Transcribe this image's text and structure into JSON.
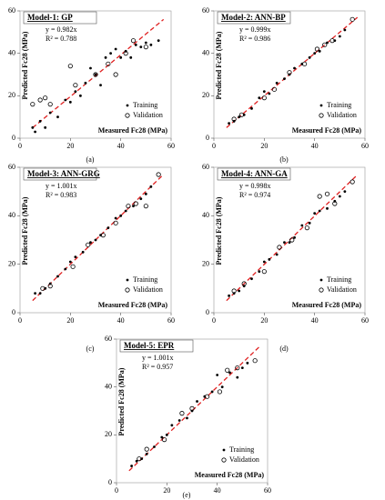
{
  "chart_data": [
    {
      "type": "scatter",
      "title": "Model-1: GP",
      "equation": "y = 0.982x",
      "slope": 0.982,
      "r2_label": "R² = 0.788",
      "x_label": "Measured Fc28 (MPa)",
      "y_label": "Predicted Fc28 (MPa)",
      "caption": "(a)",
      "xlim": [
        0,
        60
      ],
      "ylim": [
        0,
        60
      ],
      "xticks": [
        0,
        20,
        40,
        60
      ],
      "yticks": [
        0,
        20,
        40,
        60
      ],
      "line_color": "#e02020",
      "series": [
        {
          "name": "Training",
          "color": "#000000",
          "x": [
            5,
            6,
            8,
            10,
            12,
            15,
            18,
            20,
            22,
            24,
            26,
            28,
            30,
            32,
            34,
            36,
            38,
            40,
            42,
            44,
            46,
            48,
            50,
            52,
            55
          ],
          "values": [
            5,
            3,
            8,
            5,
            12,
            10,
            18,
            17,
            22,
            20,
            26,
            33,
            30,
            25,
            38,
            40,
            42,
            38,
            41,
            38,
            44,
            43,
            45,
            44,
            46
          ]
        },
        {
          "name": "Validation",
          "color": "#000000",
          "x": [
            5,
            8,
            10,
            12,
            20,
            22,
            30,
            35,
            38,
            42,
            45,
            50
          ],
          "values": [
            16,
            18,
            19,
            16,
            34,
            25,
            30,
            35,
            30,
            40,
            46,
            43
          ]
        }
      ]
    },
    {
      "type": "scatter",
      "title": "Model-2: ANN-BP",
      "equation": "y = 0.999x",
      "slope": 0.999,
      "r2_label": "R² = 0.986",
      "x_label": "Measured Fc28 (MPa)",
      "y_label": "Predicted Fc28 (MPa)",
      "caption": "(b)",
      "xlim": [
        0,
        60
      ],
      "ylim": [
        0,
        60
      ],
      "xticks": [
        0,
        20,
        40,
        60
      ],
      "yticks": [
        0,
        20,
        40,
        60
      ],
      "line_color": "#e02020",
      "series": [
        {
          "name": "Training",
          "color": "#000000",
          "x": [
            6,
            8,
            10,
            12,
            15,
            18,
            20,
            22,
            25,
            28,
            30,
            32,
            35,
            38,
            40,
            42,
            45,
            48,
            50,
            52
          ],
          "values": [
            7,
            8,
            10,
            11,
            14,
            19,
            22,
            21,
            26,
            28,
            30,
            33,
            35,
            38,
            40,
            41,
            45,
            46,
            48,
            51
          ]
        },
        {
          "name": "Validation",
          "color": "#000000",
          "x": [
            8,
            11,
            20,
            24,
            30,
            36,
            41,
            44,
            47,
            55
          ],
          "values": [
            9,
            11,
            19,
            23,
            31,
            35,
            42,
            44,
            46,
            56
          ]
        }
      ]
    },
    {
      "type": "scatter",
      "title": "Model-3: ANN-GRG",
      "equation": "y = 1.001x",
      "slope": 1.001,
      "r2_label": "R² = 0.983",
      "x_label": "Measured Fc28 (MPa)",
      "y_label": "Predicted Fc28 (MPa)",
      "caption": "(c)",
      "xlim": [
        0,
        60
      ],
      "ylim": [
        0,
        60
      ],
      "xticks": [
        0,
        20,
        40,
        60
      ],
      "yticks": [
        0,
        20,
        40,
        60
      ],
      "line_color": "#e02020",
      "series": [
        {
          "name": "Training",
          "color": "#000000",
          "x": [
            6,
            8,
            10,
            12,
            15,
            18,
            20,
            22,
            25,
            28,
            30,
            32,
            35,
            38,
            40,
            42,
            45,
            48,
            50,
            52
          ],
          "values": [
            8,
            8,
            10,
            12,
            15,
            18,
            21,
            23,
            25,
            29,
            30,
            32,
            35,
            39,
            40,
            42,
            44,
            47,
            49,
            52
          ]
        },
        {
          "name": "Validation",
          "color": "#000000",
          "x": [
            9,
            12,
            21,
            27,
            33,
            38,
            43,
            46,
            50,
            55
          ],
          "values": [
            10,
            11,
            19,
            28,
            32,
            37,
            44,
            45,
            44,
            57
          ]
        }
      ]
    },
    {
      "type": "scatter",
      "title": "Model-4: ANN-GA",
      "equation": "y = 0.998x",
      "slope": 0.998,
      "r2_label": "R² = 0.974",
      "x_label": "Measured Fc28 (MPa)",
      "y_label": "Predicted Fc28 (MPa)",
      "caption": "(d)",
      "xlim": [
        0,
        60
      ],
      "ylim": [
        0,
        60
      ],
      "xticks": [
        0,
        20,
        40,
        60
      ],
      "yticks": [
        0,
        20,
        40,
        60
      ],
      "line_color": "#e02020",
      "series": [
        {
          "name": "Training",
          "color": "#000000",
          "x": [
            6,
            8,
            10,
            12,
            15,
            18,
            20,
            22,
            25,
            28,
            30,
            32,
            35,
            38,
            40,
            42,
            45,
            48,
            50,
            52
          ],
          "values": [
            7,
            8,
            9,
            11,
            14,
            17,
            21,
            22,
            24,
            29,
            29,
            31,
            36,
            37,
            41,
            42,
            43,
            46,
            48,
            50
          ]
        },
        {
          "name": "Validation",
          "color": "#000000",
          "x": [
            8,
            12,
            20,
            26,
            31,
            37,
            42,
            45,
            48,
            55
          ],
          "values": [
            9,
            12,
            17,
            27,
            30,
            35,
            48,
            49,
            45,
            54
          ]
        }
      ]
    },
    {
      "type": "scatter",
      "title": "Model-5: EPR",
      "equation": "y = 1.001x",
      "slope": 1.001,
      "r2_label": "R² = 0.957",
      "x_label": "Measured Fc28 (MPa)",
      "y_label": "Predicted Fc28 (MPa)",
      "caption": "(e)",
      "xlim": [
        0,
        60
      ],
      "ylim": [
        0,
        60
      ],
      "xticks": [
        0,
        20,
        40,
        60
      ],
      "yticks": [
        0,
        20,
        40,
        60
      ],
      "line_color": "#e02020",
      "series": [
        {
          "name": "Training",
          "color": "#000000",
          "x": [
            6,
            8,
            10,
            12,
            15,
            18,
            20,
            22,
            25,
            28,
            30,
            32,
            35,
            38,
            40,
            42,
            45,
            48,
            50,
            52
          ],
          "values": [
            7,
            9,
            10,
            12,
            15,
            19,
            20,
            24,
            26,
            27,
            30,
            34,
            36,
            38,
            45,
            40,
            46,
            44,
            48,
            50
          ]
        },
        {
          "name": "Validation",
          "color": "#000000",
          "x": [
            9,
            12,
            19,
            26,
            30,
            36,
            41,
            44,
            48,
            55
          ],
          "values": [
            10,
            14,
            18,
            29,
            31,
            36,
            38,
            47,
            48,
            51
          ]
        }
      ]
    }
  ]
}
